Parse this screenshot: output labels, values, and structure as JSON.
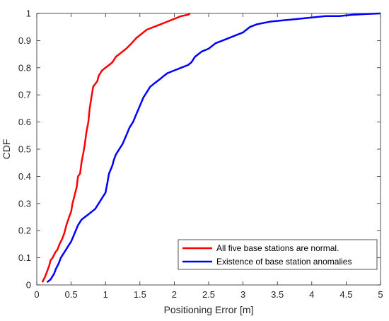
{
  "chart_data": {
    "type": "line",
    "title": "",
    "xlabel": "Positioning Error [m]",
    "ylabel": "CDF",
    "xlim": [
      0,
      5
    ],
    "ylim": [
      0,
      1
    ],
    "xticks": [
      0,
      0.5,
      1,
      1.5,
      2,
      2.5,
      3,
      3.5,
      4,
      4.5,
      5
    ],
    "xtick_labels": [
      "0",
      "0.5",
      "1",
      "1.5",
      "2",
      "2.5",
      "3",
      "3.5",
      "4",
      "4.5",
      "5"
    ],
    "yticks": [
      0,
      0.1,
      0.2,
      0.3,
      0.4,
      0.5,
      0.6,
      0.7,
      0.8,
      0.9,
      1
    ],
    "ytick_labels": [
      "0",
      "0.1",
      "0.2",
      "0.3",
      "0.4",
      "0.5",
      "0.6",
      "0.7",
      "0.8",
      "0.9",
      "1"
    ],
    "grid": false,
    "legend_position": "bottom-right",
    "series": [
      {
        "name": "All five base stations are normal.",
        "color": "#ff0000",
        "x": [
          0.08,
          0.12,
          0.15,
          0.18,
          0.2,
          0.23,
          0.27,
          0.3,
          0.33,
          0.37,
          0.4,
          0.43,
          0.47,
          0.5,
          0.52,
          0.55,
          0.58,
          0.6,
          0.63,
          0.65,
          0.68,
          0.7,
          0.72,
          0.75,
          0.77,
          0.8,
          0.82,
          0.85,
          0.88,
          0.9,
          0.95,
          1.0,
          1.05,
          1.1,
          1.15,
          1.2,
          1.3,
          1.38,
          1.45,
          1.55,
          1.6,
          1.7,
          1.8,
          1.9,
          2.0,
          2.1,
          2.2,
          2.23
        ],
        "y": [
          0.01,
          0.03,
          0.05,
          0.07,
          0.09,
          0.1,
          0.12,
          0.13,
          0.15,
          0.17,
          0.19,
          0.22,
          0.25,
          0.27,
          0.3,
          0.33,
          0.36,
          0.4,
          0.41,
          0.45,
          0.49,
          0.52,
          0.56,
          0.6,
          0.65,
          0.7,
          0.73,
          0.74,
          0.75,
          0.77,
          0.79,
          0.8,
          0.81,
          0.82,
          0.84,
          0.85,
          0.87,
          0.89,
          0.91,
          0.93,
          0.94,
          0.95,
          0.96,
          0.97,
          0.98,
          0.99,
          0.995,
          1.0
        ]
      },
      {
        "name": "Existence of base station anomalies",
        "color": "#0000ff",
        "x": [
          0.15,
          0.2,
          0.25,
          0.28,
          0.32,
          0.35,
          0.4,
          0.45,
          0.5,
          0.55,
          0.6,
          0.65,
          0.7,
          0.75,
          0.8,
          0.85,
          0.9,
          0.95,
          1.0,
          1.03,
          1.05,
          1.1,
          1.12,
          1.15,
          1.2,
          1.25,
          1.3,
          1.35,
          1.4,
          1.45,
          1.5,
          1.55,
          1.6,
          1.65,
          1.7,
          1.75,
          1.8,
          1.85,
          1.9,
          2.0,
          2.1,
          2.2,
          2.25,
          2.3,
          2.4,
          2.5,
          2.6,
          2.7,
          2.8,
          2.9,
          3.0,
          3.05,
          3.1,
          3.2,
          3.4,
          3.6,
          3.8,
          4.0,
          4.2,
          4.4,
          4.6,
          4.8,
          5.0
        ],
        "y": [
          0.01,
          0.02,
          0.04,
          0.06,
          0.08,
          0.1,
          0.12,
          0.14,
          0.16,
          0.19,
          0.22,
          0.24,
          0.25,
          0.26,
          0.27,
          0.28,
          0.3,
          0.32,
          0.34,
          0.38,
          0.41,
          0.44,
          0.46,
          0.48,
          0.5,
          0.52,
          0.55,
          0.58,
          0.6,
          0.63,
          0.66,
          0.69,
          0.71,
          0.73,
          0.74,
          0.75,
          0.76,
          0.77,
          0.78,
          0.79,
          0.8,
          0.81,
          0.82,
          0.84,
          0.86,
          0.87,
          0.89,
          0.9,
          0.91,
          0.92,
          0.93,
          0.94,
          0.95,
          0.96,
          0.97,
          0.975,
          0.98,
          0.985,
          0.99,
          0.99,
          0.995,
          0.998,
          1.0
        ]
      }
    ]
  }
}
